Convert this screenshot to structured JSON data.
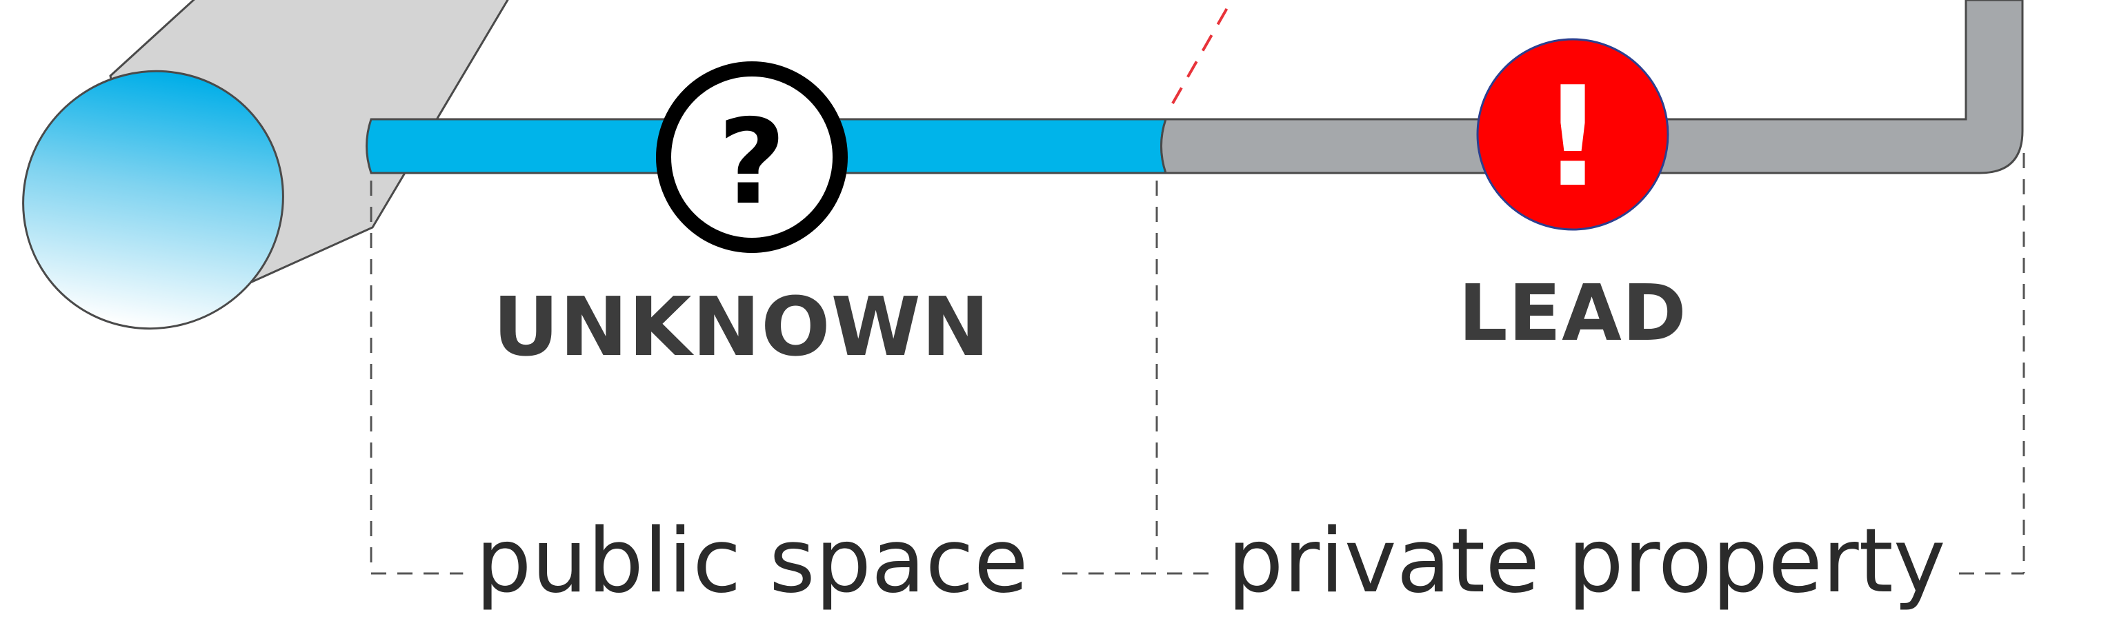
{
  "statuses": {
    "public": {
      "label": "UNKNOWN",
      "icon": "question-mark-icon",
      "icon_glyph": "?",
      "icon_color": "#000000",
      "icon_fill": "#ffffff"
    },
    "private": {
      "label": "LEAD",
      "icon": "exclamation-mark-icon",
      "icon_glyph": "!",
      "icon_color": "#ffffff",
      "icon_fill": "#ff0000"
    }
  },
  "zones": {
    "public": "public space",
    "private": "private property"
  },
  "colors": {
    "public_pipe": "#00b4ea",
    "private_pipe": "#a5a8ab",
    "main_pipe": "#d4d4d4",
    "property_line": "#e8333a",
    "dashed_line": "#555555"
  }
}
